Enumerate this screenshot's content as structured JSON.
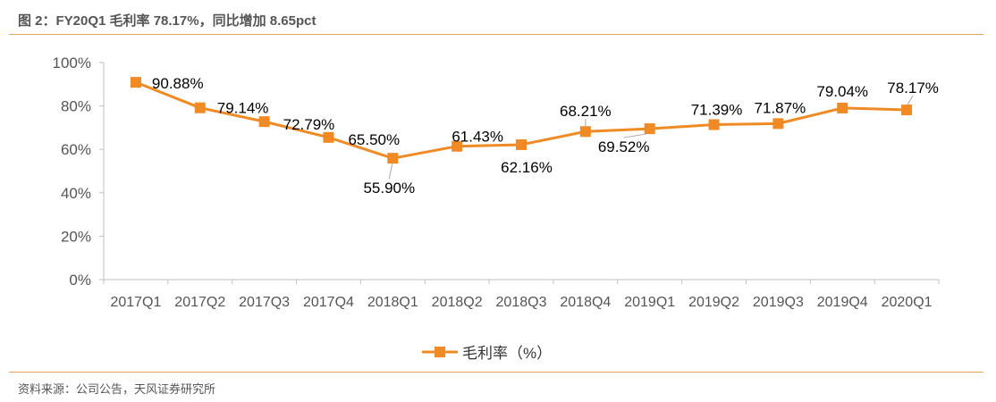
{
  "figure": {
    "title": "图 2：FY20Q1 毛利率 78.17%，同比增加 8.65pct",
    "source": "资料来源：公司公告，天风证券研究所"
  },
  "colors": {
    "series": "#f08a24",
    "axis": "#bfbfbf",
    "rule": "#e6a35a"
  },
  "chart_data": {
    "type": "line",
    "title": "",
    "xlabel": "",
    "ylabel": "",
    "ylim": [
      0,
      100
    ],
    "y_ticks": [
      "0%",
      "20%",
      "40%",
      "60%",
      "80%",
      "100%"
    ],
    "y_tick_values": [
      0,
      20,
      40,
      60,
      80,
      100
    ],
    "grid": false,
    "legend_position": "bottom",
    "categories": [
      "2017Q1",
      "2017Q2",
      "2017Q3",
      "2017Q4",
      "2018Q1",
      "2018Q2",
      "2018Q3",
      "2018Q4",
      "2019Q1",
      "2019Q2",
      "2019Q3",
      "2019Q4",
      "2020Q1"
    ],
    "series": [
      {
        "name": "毛利率（%）",
        "marker": "square",
        "values": [
          90.88,
          79.14,
          72.79,
          65.5,
          55.9,
          61.43,
          62.16,
          68.21,
          69.52,
          71.39,
          71.87,
          79.04,
          78.17
        ],
        "labels": [
          "90.88%",
          "79.14%",
          "72.79%",
          "65.50%",
          "55.90%",
          "61.43%",
          "62.16%",
          "68.21%",
          "69.52%",
          "71.39%",
          "71.87%",
          "79.04%",
          "78.17%"
        ]
      }
    ]
  }
}
